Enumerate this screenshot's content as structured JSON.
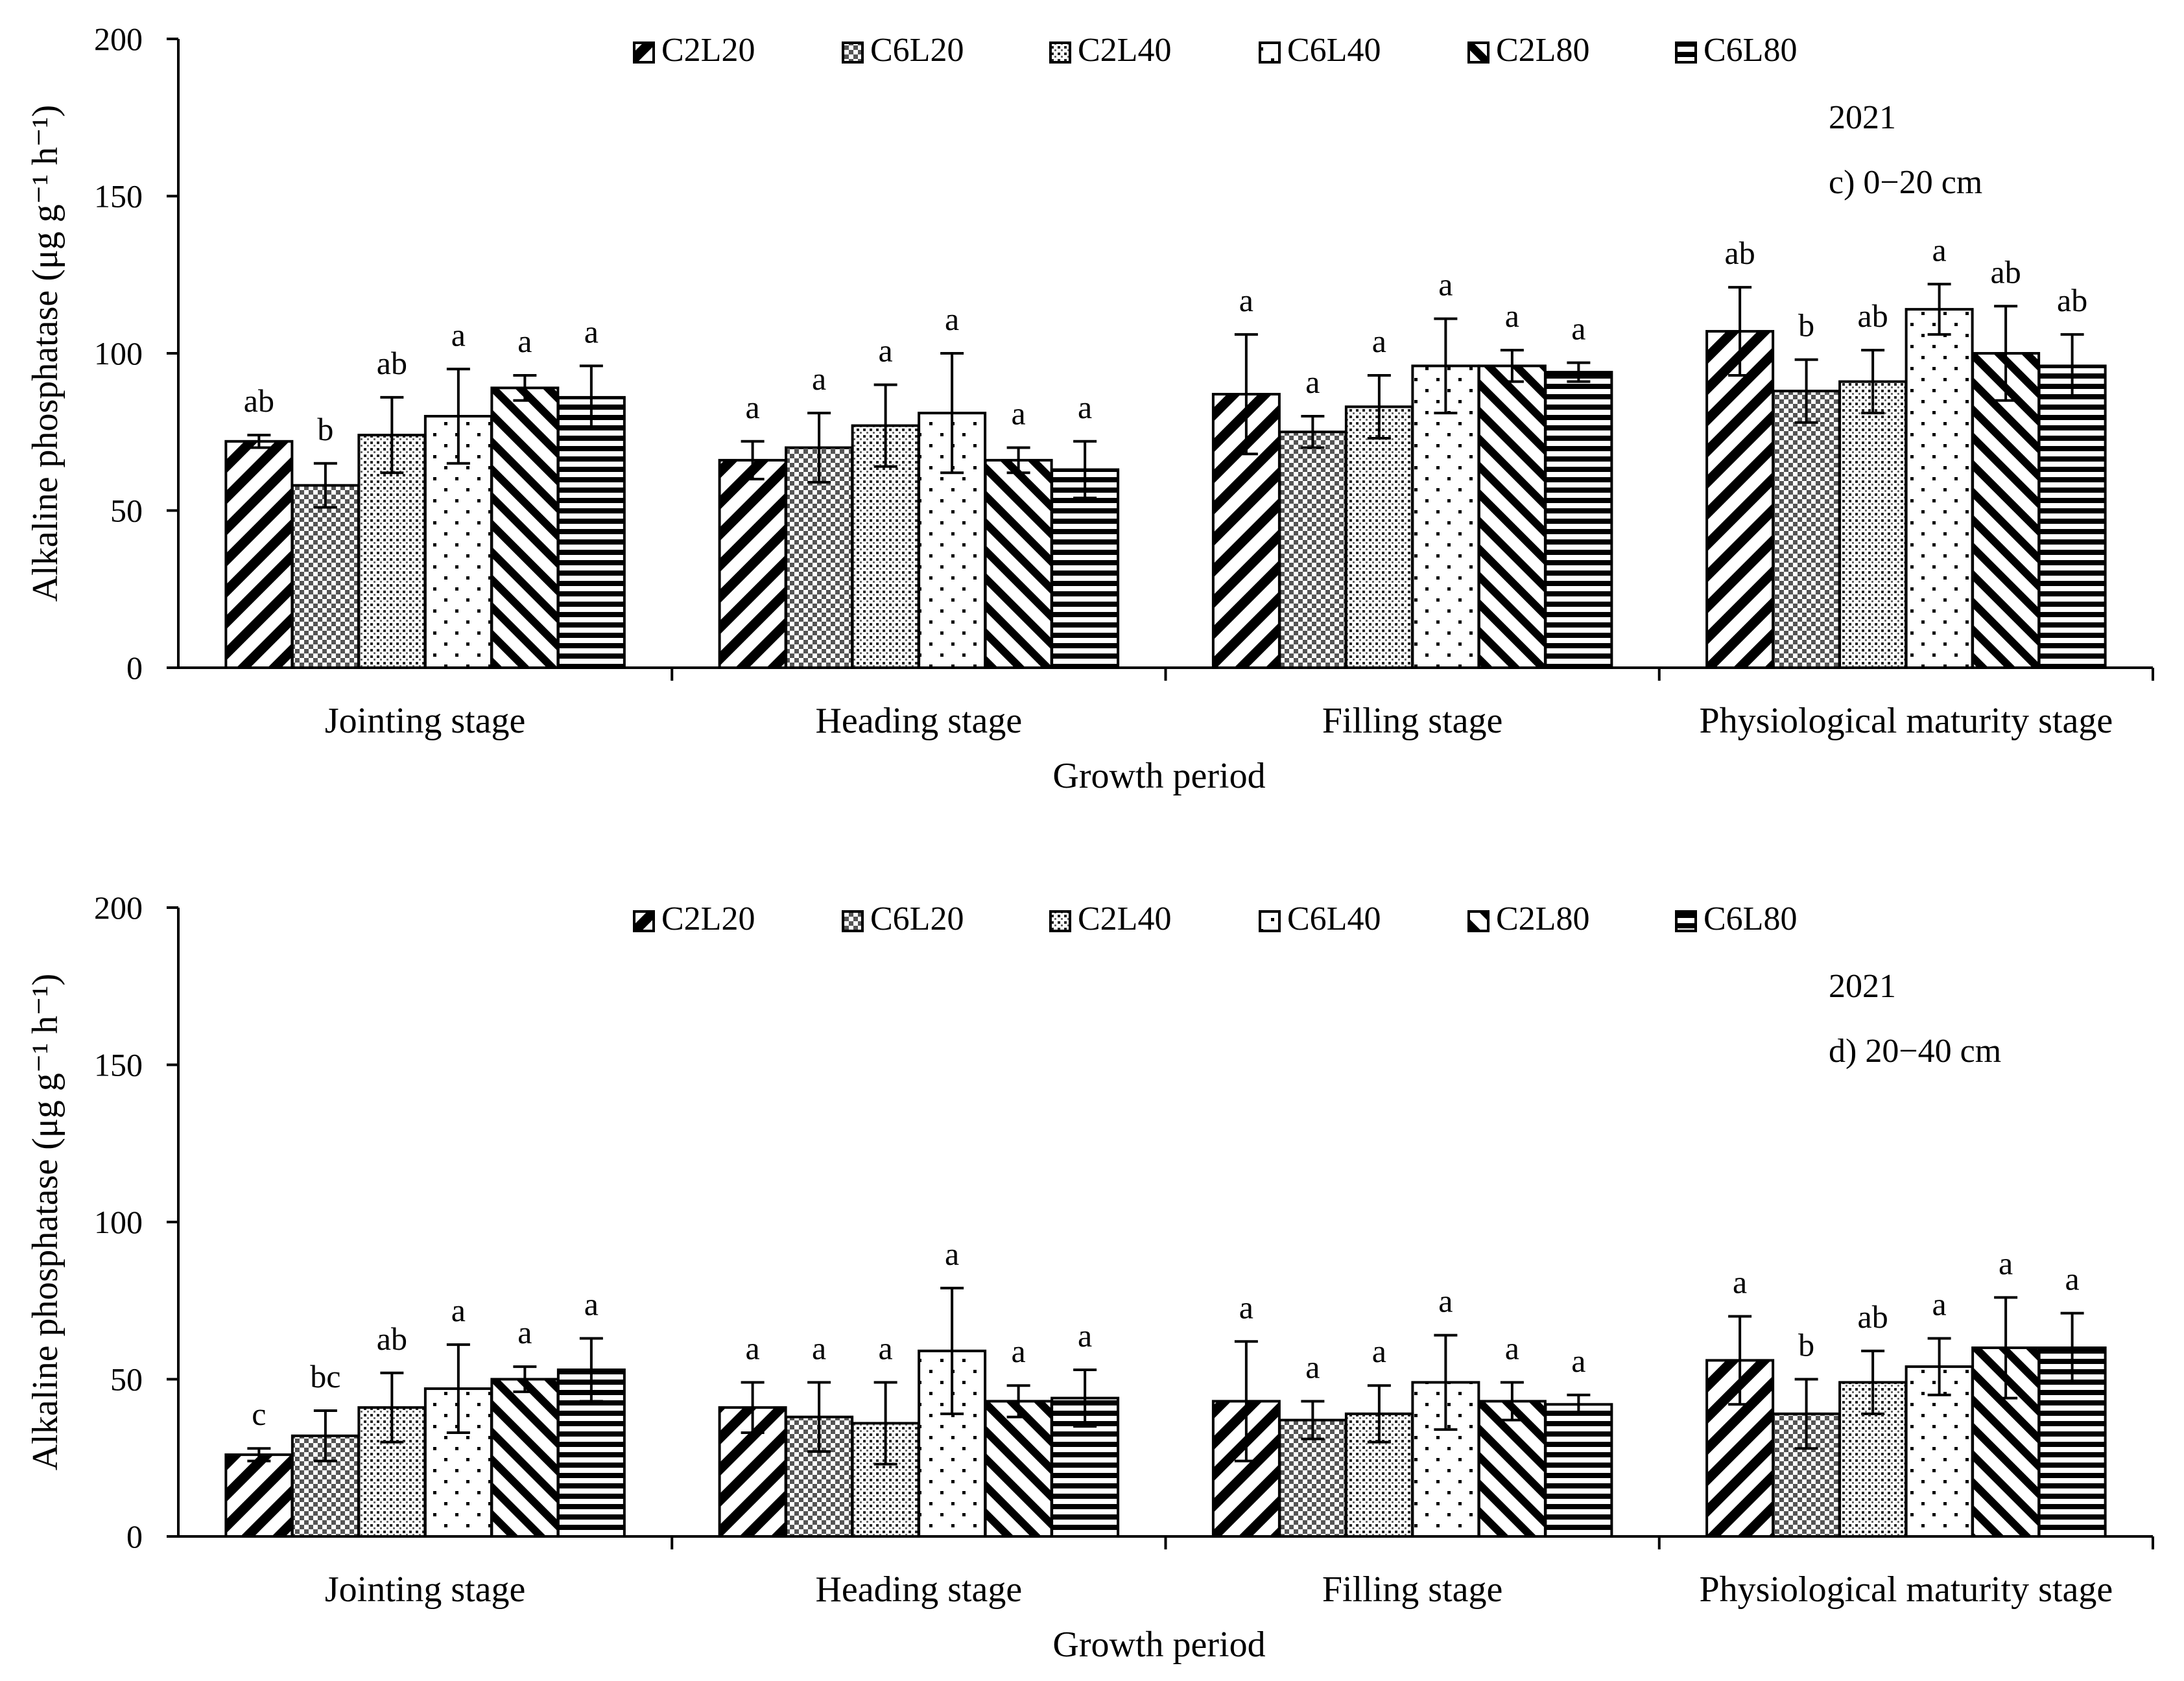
{
  "chart_data": [
    {
      "type": "bar",
      "year": "2021",
      "panel_label": "c) 0−20 cm",
      "xlabel": "Growth period",
      "ylabel": "Alkaline phosphatase (μg g⁻¹ h⁻¹)",
      "ylim": [
        0,
        200
      ],
      "yticks": [
        0,
        50,
        100,
        150,
        200
      ],
      "grid": false,
      "legend_position": "top",
      "categories": [
        "Jointing stage",
        "Heading stage",
        "Filling stage",
        "Physiological maturity stage"
      ],
      "series": [
        {
          "name": "C2L20",
          "pattern": "diag-back",
          "values": [
            72,
            66,
            87,
            107
          ],
          "errors": [
            2,
            6,
            19,
            14
          ],
          "labels": [
            "ab",
            "a",
            "a",
            "ab"
          ]
        },
        {
          "name": "C6L20",
          "pattern": "checker",
          "values": [
            58,
            70,
            75,
            88
          ],
          "errors": [
            7,
            11,
            5,
            10
          ],
          "labels": [
            "b",
            "a",
            "a",
            "b"
          ]
        },
        {
          "name": "C2L40",
          "pattern": "dense-dots",
          "values": [
            74,
            77,
            83,
            91
          ],
          "errors": [
            12,
            13,
            10,
            10
          ],
          "labels": [
            "ab",
            "a",
            "a",
            "ab"
          ]
        },
        {
          "name": "C6L40",
          "pattern": "sparse-dots",
          "values": [
            80,
            81,
            96,
            114
          ],
          "errors": [
            15,
            19,
            15,
            8
          ],
          "labels": [
            "a",
            "a",
            "a",
            "a"
          ]
        },
        {
          "name": "C2L80",
          "pattern": "diag-forward",
          "values": [
            89,
            66,
            96,
            100
          ],
          "errors": [
            4,
            4,
            5,
            15
          ],
          "labels": [
            "a",
            "a",
            "a",
            "ab"
          ]
        },
        {
          "name": "C6L80",
          "pattern": "horizontal",
          "values": [
            86,
            63,
            94,
            96
          ],
          "errors": [
            10,
            9,
            3,
            10
          ],
          "labels": [
            "a",
            "a",
            "a",
            "ab"
          ]
        }
      ]
    },
    {
      "type": "bar",
      "year": "2021",
      "panel_label": "d) 20−40 cm",
      "xlabel": "Growth period",
      "ylabel": "Alkaline phosphatase (μg g⁻¹ h⁻¹)",
      "ylim": [
        0,
        200
      ],
      "yticks": [
        0,
        50,
        100,
        150,
        200
      ],
      "grid": false,
      "legend_position": "top",
      "categories": [
        "Jointing stage",
        "Heading stage",
        "Filling stage",
        "Physiological maturity stage"
      ],
      "series": [
        {
          "name": "C2L20",
          "pattern": "diag-back",
          "values": [
            26,
            41,
            43,
            56
          ],
          "errors": [
            2,
            8,
            19,
            14
          ],
          "labels": [
            "c",
            "a",
            "a",
            "a"
          ]
        },
        {
          "name": "C6L20",
          "pattern": "checker",
          "values": [
            32,
            38,
            37,
            39
          ],
          "errors": [
            8,
            11,
            6,
            11
          ],
          "labels": [
            "bc",
            "a",
            "a",
            "b"
          ]
        },
        {
          "name": "C2L40",
          "pattern": "dense-dots",
          "values": [
            41,
            36,
            39,
            49
          ],
          "errors": [
            11,
            13,
            9,
            10
          ],
          "labels": [
            "ab",
            "a",
            "a",
            "ab"
          ]
        },
        {
          "name": "C6L40",
          "pattern": "sparse-dots",
          "values": [
            47,
            59,
            49,
            54
          ],
          "errors": [
            14,
            20,
            15,
            9
          ],
          "labels": [
            "a",
            "a",
            "a",
            "a"
          ]
        },
        {
          "name": "C2L80",
          "pattern": "diag-forward",
          "values": [
            50,
            43,
            43,
            60
          ],
          "errors": [
            4,
            5,
            6,
            16
          ],
          "labels": [
            "a",
            "a",
            "a",
            "a"
          ]
        },
        {
          "name": "C6L80",
          "pattern": "horizontal",
          "values": [
            53,
            44,
            42,
            60
          ],
          "errors": [
            10,
            9,
            3,
            11
          ],
          "labels": [
            "a",
            "a",
            "a",
            "a"
          ]
        }
      ]
    }
  ]
}
